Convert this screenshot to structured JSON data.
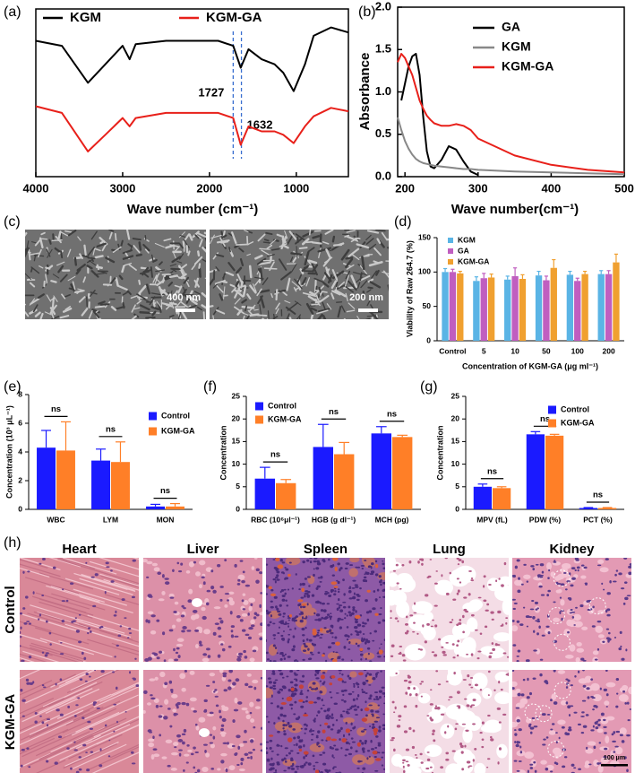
{
  "chart_data": [
    {
      "panel": "(a)",
      "type": "line",
      "xlabel": "Wave number (cm⁻¹)",
      "x": [
        4000,
        3700,
        3400,
        3200,
        3000,
        2920,
        2850,
        2500,
        2100,
        1900,
        1727,
        1640,
        1550,
        1400,
        1250,
        1150,
        1030,
        900,
        800,
        600,
        400
      ],
      "series": [
        {
          "name": "KGM",
          "color": "#000000",
          "values": [
            81,
            78,
            56,
            67,
            78,
            70,
            79,
            81,
            81,
            81,
            78,
            65,
            76,
            70,
            67,
            62,
            51,
            67,
            84,
            89,
            86
          ]
        },
        {
          "name": "KGM-GA",
          "color": "#e8201a",
          "values": [
            42,
            38,
            15,
            25,
            35,
            30,
            35,
            38,
            38,
            38,
            35,
            19,
            30,
            27,
            27,
            25,
            20,
            30,
            36,
            41,
            39
          ]
        }
      ],
      "xlim": [
        4000,
        400
      ],
      "xticks": [
        4000,
        3000,
        2000,
        1000
      ],
      "ylim": [
        0,
        100
      ],
      "vlines": [
        1727,
        1632
      ],
      "legend": "top"
    },
    {
      "panel": "(b)",
      "type": "line",
      "xlabel": "Wave number(cm⁻¹)",
      "ylabel": "Absorbance",
      "x": [
        190,
        195,
        200,
        205,
        210,
        215,
        220,
        225,
        230,
        235,
        240,
        250,
        260,
        270,
        280,
        290,
        300,
        350,
        400,
        450,
        500
      ],
      "series": [
        {
          "name": "GA",
          "color": "#000000",
          "values": [
            null,
            0.9,
            1.1,
            1.3,
            1.42,
            1.45,
            1.2,
            0.7,
            0.3,
            0.12,
            0.1,
            0.2,
            0.36,
            0.32,
            0.18,
            0.06,
            0.02,
            null,
            null,
            null,
            null
          ]
        },
        {
          "name": "KGM",
          "color": "#888888",
          "values": [
            0.7,
            0.55,
            0.42,
            0.33,
            0.26,
            0.21,
            0.18,
            0.16,
            0.15,
            0.14,
            0.13,
            0.12,
            0.11,
            0.1,
            0.09,
            0.09,
            0.08,
            0.06,
            0.05,
            0.04,
            0.03
          ]
        },
        {
          "name": "KGM-GA",
          "color": "#e8201a",
          "values": [
            1.35,
            1.45,
            1.4,
            1.3,
            1.2,
            1.05,
            0.9,
            0.8,
            0.72,
            0.67,
            0.63,
            0.6,
            0.6,
            0.62,
            0.6,
            0.55,
            0.45,
            0.25,
            0.14,
            0.08,
            0.05
          ]
        }
      ],
      "xlim": [
        190,
        500
      ],
      "xticks": [
        200,
        300,
        400,
        500
      ],
      "ylim": [
        0,
        2
      ],
      "yticks": [
        {
          "value": 0,
          "label": "0.0"
        },
        0.5,
        {
          "value": 1,
          "label": "1.0"
        },
        1.5,
        {
          "value": 2,
          "label": "2.0"
        }
      ],
      "legend": "top-right"
    },
    {
      "panel": "(d)",
      "type": "bar",
      "xlabel": "Concentration of KGM-GA (μg ml⁻¹)",
      "ylabel": "Viability of Raw 264.7 (%)",
      "categories": [
        "Control",
        "5",
        "10",
        "50",
        "100",
        "200"
      ],
      "series": [
        {
          "name": "KGM",
          "color": "#5ab4e5",
          "values": [
            100,
            87,
            89,
            95,
            96,
            97
          ],
          "errors": [
            5,
            6,
            5,
            6,
            5,
            5
          ]
        },
        {
          "name": "GA",
          "color": "#c05ec0",
          "values": [
            100,
            91,
            94,
            88,
            87,
            97
          ],
          "errors": [
            4,
            7,
            12,
            6,
            4,
            5
          ]
        },
        {
          "name": "KGM-GA",
          "color": "#f0a030",
          "values": [
            98,
            92,
            90,
            106,
            97,
            114
          ],
          "errors": [
            3,
            5,
            6,
            12,
            4,
            12
          ]
        }
      ],
      "ylim": [
        0,
        150
      ],
      "yticks": [
        0,
        50,
        100,
        150
      ],
      "legend": "top-left"
    },
    {
      "panel": "(e)",
      "type": "bar",
      "ylabel": "Concentration (10³ μL⁻¹)",
      "categories": [
        "WBC",
        "LYM",
        "MON"
      ],
      "series": [
        {
          "name": "Control",
          "color": "#1a1aff",
          "values": [
            4.3,
            3.4,
            0.2
          ],
          "errors": [
            1.2,
            0.8,
            0.15
          ]
        },
        {
          "name": "KGM-GA",
          "color": "#ff7f27",
          "values": [
            4.1,
            3.3,
            0.2
          ],
          "errors": [
            2.0,
            1.4,
            0.2
          ]
        }
      ],
      "ylim": [
        0,
        8
      ],
      "yticks": [
        0,
        2,
        4,
        6,
        8
      ],
      "annotations": [
        "ns",
        "ns",
        "ns"
      ],
      "legend": "top-right"
    },
    {
      "panel": "(f)",
      "type": "bar",
      "ylabel": "Concentration",
      "categories": [
        "RBC (10⁶μl⁻¹)",
        "HGB (g dl⁻¹)",
        "MCH (pg)"
      ],
      "series": [
        {
          "name": "Control",
          "color": "#1a1aff",
          "values": [
            6.8,
            13.8,
            16.8
          ],
          "errors": [
            2.5,
            5,
            1.5
          ]
        },
        {
          "name": "KGM-GA",
          "color": "#ff7f27",
          "values": [
            5.8,
            12.2,
            16
          ],
          "errors": [
            0.8,
            2.6,
            0.4
          ]
        }
      ],
      "ylim": [
        0,
        25
      ],
      "yticks": [
        0,
        5,
        10,
        15,
        20,
        25
      ],
      "annotations": [
        "ns",
        "ns",
        "ns"
      ],
      "legend": "top-left"
    },
    {
      "panel": "(g)",
      "type": "bar",
      "ylabel": "Concentration",
      "categories": [
        "MPV (fL)",
        "PDW (%)",
        "PCT (%)"
      ],
      "series": [
        {
          "name": "Control",
          "color": "#1a1aff",
          "values": [
            5,
            16.6,
            0.3
          ],
          "errors": [
            0.6,
            0.6,
            0.1
          ]
        },
        {
          "name": "KGM-GA",
          "color": "#ff7f27",
          "values": [
            4.7,
            16.3,
            0.3
          ],
          "errors": [
            0.3,
            0.3,
            0.1
          ]
        }
      ],
      "ylim": [
        0,
        25
      ],
      "yticks": [
        0,
        5,
        10,
        15,
        20,
        25
      ],
      "annotations": [
        "ns",
        "ns",
        "ns"
      ],
      "legend": "top-right"
    }
  ],
  "sem": {
    "panel": "(c)",
    "scale_bars": [
      "400 nm",
      "200 nm"
    ]
  },
  "histology": {
    "panel": "(h)",
    "columns": [
      "Heart",
      "Liver",
      "Spleen",
      "Lung",
      "Kidney"
    ],
    "rows": [
      "Control",
      "KGM-GA"
    ],
    "scale_bar": "100 μm"
  }
}
